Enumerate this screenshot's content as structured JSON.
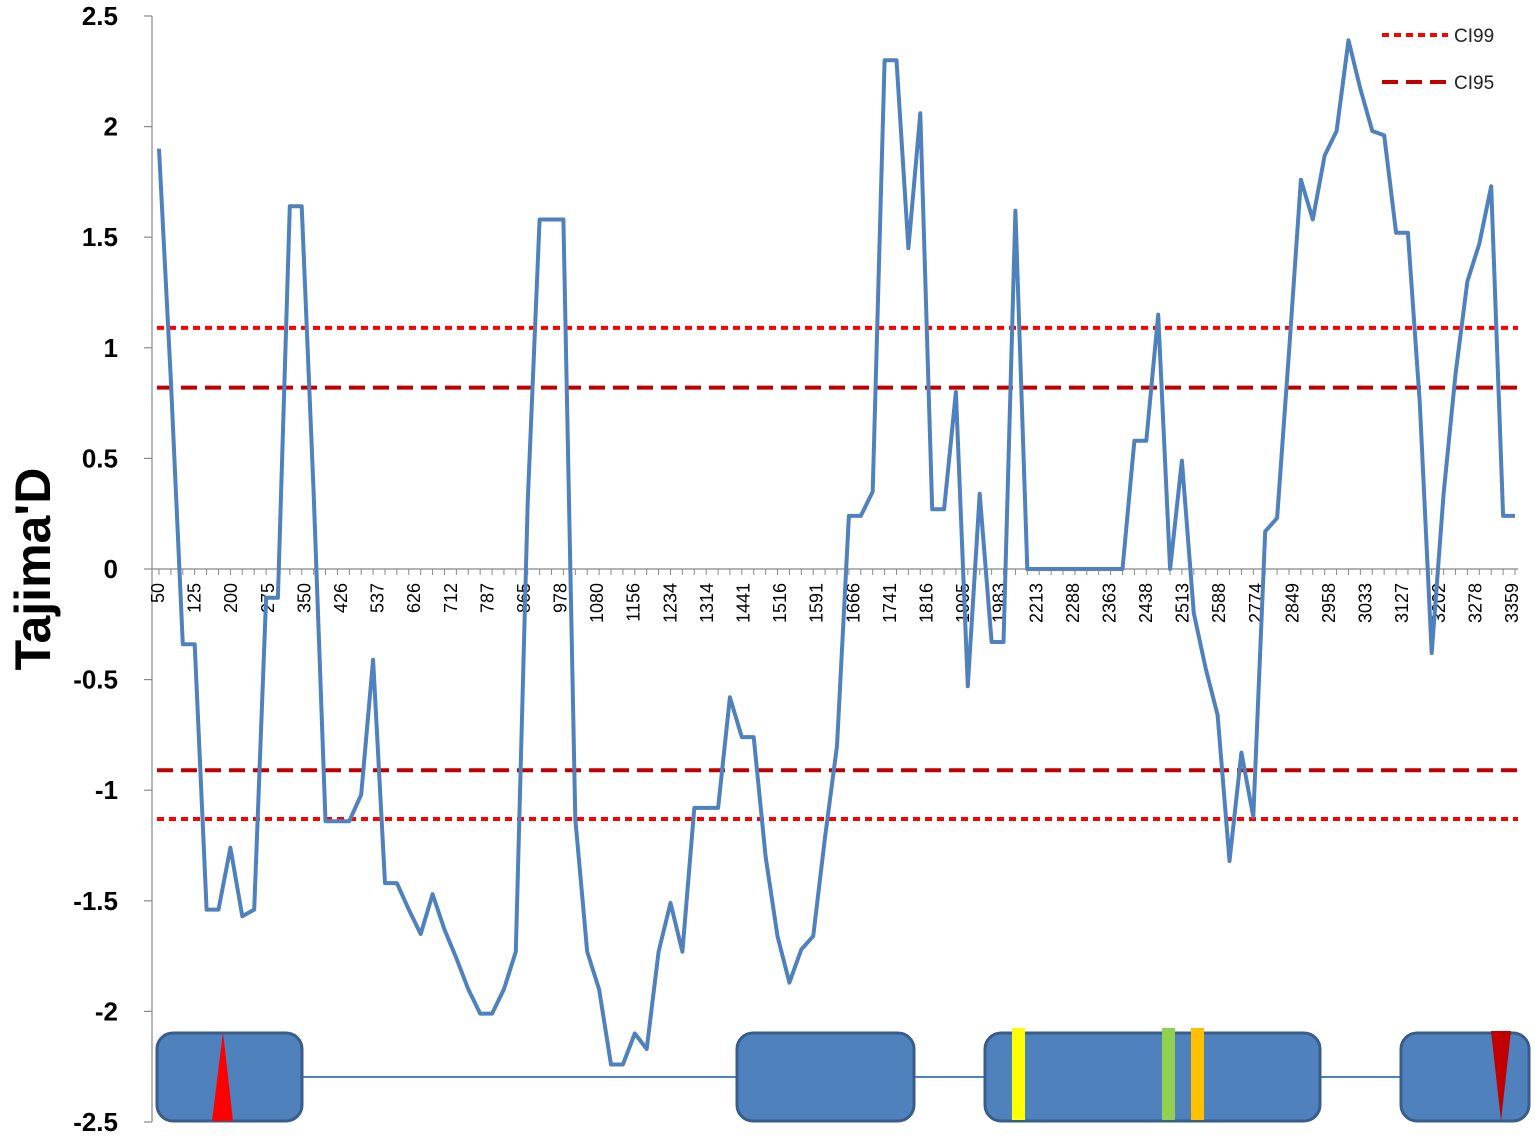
{
  "chart_data": {
    "type": "line",
    "title": "",
    "xlabel": "",
    "ylabel": "Tajima'D",
    "ylim": [
      -2.5,
      2.5
    ],
    "yticks": [
      "2.5",
      "2",
      "1.5",
      "1",
      "0.5",
      "0",
      "-0.5",
      "-1",
      "-1.5",
      "-2",
      "-2.5"
    ],
    "x_tick_labels": [
      "50",
      "125",
      "200",
      "275",
      "350",
      "426",
      "537",
      "626",
      "712",
      "787",
      "865",
      "978",
      "1080",
      "1156",
      "1234",
      "1314",
      "1441",
      "1516",
      "1591",
      "1666",
      "1741",
      "1816",
      "1905",
      "1983",
      "2213",
      "2288",
      "2363",
      "2438",
      "2513",
      "2588",
      "2774",
      "2849",
      "2958",
      "3033",
      "3127",
      "3202",
      "3278",
      "3359"
    ],
    "line_color": "#4F81BD",
    "series": [
      {
        "values": [
          1.9,
          0.85,
          -0.34,
          -0.34,
          -1.54,
          -1.54,
          -1.26,
          -1.57,
          -1.54,
          -0.13,
          -0.13,
          1.64,
          1.64,
          0.35,
          -1.14,
          -1.14,
          -1.14,
          -1.02,
          -0.41,
          -1.42,
          -1.42,
          -1.54,
          -1.65,
          -1.47,
          -1.63,
          -1.76,
          -1.9,
          -2.01,
          -2.01,
          -1.9,
          -1.73,
          0.3,
          1.58,
          1.58,
          1.58,
          -1.13,
          -1.73,
          -1.9,
          -2.24,
          -2.24,
          -2.1,
          -2.17,
          -1.73,
          -1.51,
          -1.73,
          -1.08,
          -1.08,
          -1.08,
          -0.58,
          -0.76,
          -0.76,
          -1.3,
          -1.66,
          -1.87,
          -1.72,
          -1.66,
          -1.21,
          -0.8,
          0.24,
          0.24,
          0.35,
          2.3,
          2.3,
          1.45,
          2.06,
          0.27,
          0.27,
          0.8,
          -0.53,
          0.34,
          -0.33,
          -0.33,
          1.62,
          0.0,
          0.0,
          0.0,
          0.0,
          0.0,
          0.0,
          0.0,
          0.0,
          0.0,
          0.58,
          0.58,
          1.15,
          0.0,
          0.49,
          -0.2,
          -0.45,
          -0.66,
          -1.32,
          -0.83,
          -1.12,
          0.17,
          0.23,
          0.98,
          1.76,
          1.58,
          1.87,
          1.98,
          2.39,
          2.17,
          1.98,
          1.96,
          1.52,
          1.52,
          0.75,
          -0.38,
          0.34,
          0.88,
          1.3,
          1.47,
          1.73,
          0.24,
          0.24
        ]
      }
    ],
    "reference_lines": [
      {
        "name": "CI99",
        "y": 1.09,
        "color": "#FF0000",
        "style": "dotted"
      },
      {
        "name": "CI95",
        "y": 0.82,
        "color": "#C00000",
        "style": "dashed"
      },
      {
        "name": "CI95",
        "y": -0.91,
        "color": "#C00000",
        "style": "dashed"
      },
      {
        "name": "CI99",
        "y": -1.13,
        "color": "#FF0000",
        "style": "dotted"
      }
    ],
    "legend": {
      "placement": "top-right",
      "entries": [
        {
          "label": "CI99",
          "style": "dotted",
          "color": "#FF0000"
        },
        {
          "label": "CI95",
          "style": "dashed",
          "color": "#C00000"
        }
      ]
    },
    "gene_structure": {
      "exon_color": "#4F81BD",
      "markers": [
        "red triangle",
        "yellow band",
        "green band",
        "orange band",
        "dark red triangle"
      ]
    },
    "grid": false
  }
}
